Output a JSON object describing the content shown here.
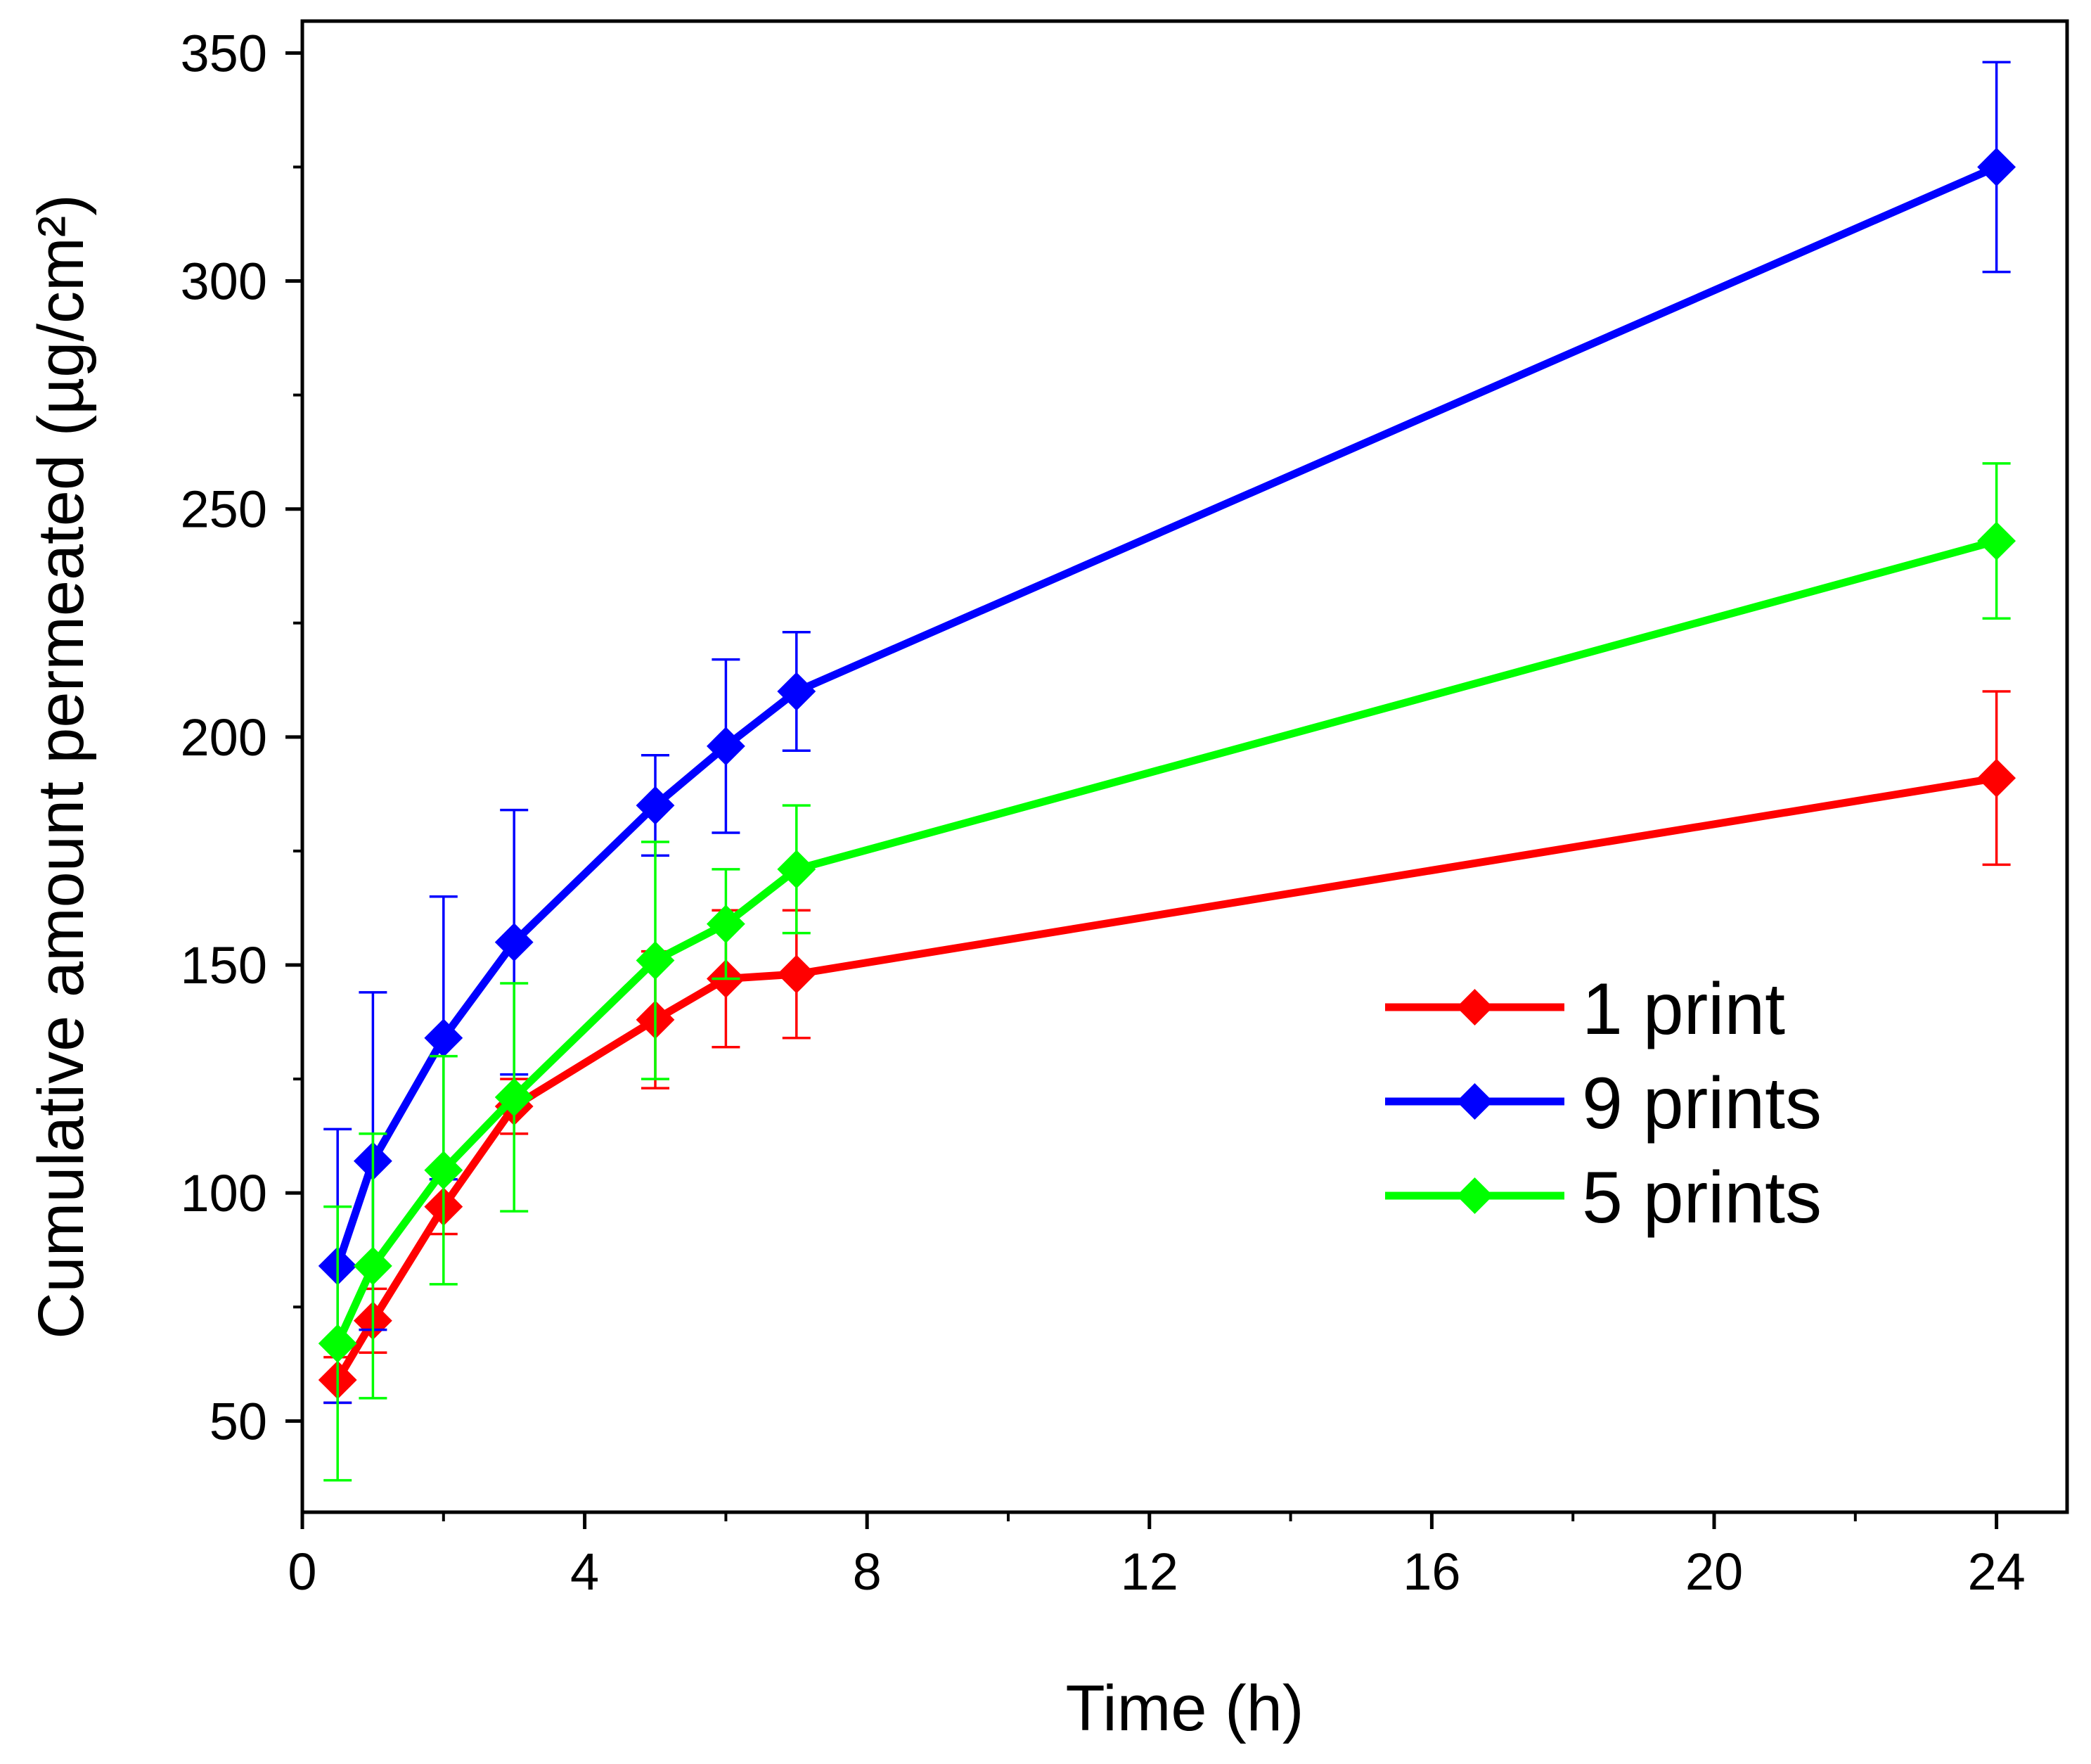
{
  "chart_data": {
    "type": "line",
    "title": "",
    "xlabel": "Time (h)",
    "ylabel": "Cumulative amount permeated (µg/cm²)",
    "xlim": [
      0,
      25
    ],
    "ylim": [
      30,
      357
    ],
    "x_ticks": [
      0,
      4,
      8,
      12,
      16,
      20,
      24
    ],
    "x_minor_ticks": [
      2,
      6,
      10,
      14,
      18,
      22
    ],
    "y_ticks": [
      50,
      100,
      150,
      200,
      250,
      300,
      350
    ],
    "grid": false,
    "legend_position": "center-right",
    "x": [
      0.5,
      1,
      2,
      3,
      5,
      6,
      7,
      24
    ],
    "series": [
      {
        "name": "1 print",
        "color": "#ff0000",
        "values": [
          59,
          72,
          97,
          119,
          138,
          147,
          148,
          191
        ],
        "errors": [
          5,
          7,
          6,
          6,
          15,
          15,
          14,
          19
        ]
      },
      {
        "name": "9 prints",
        "color": "#0000ff",
        "values": [
          84,
          107,
          134,
          155,
          185,
          198,
          210,
          325
        ],
        "errors": [
          30,
          37,
          31,
          29,
          11,
          19,
          13,
          23
        ]
      },
      {
        "name": "5 prints",
        "color": "#00ff00",
        "values": [
          67,
          84,
          105,
          121,
          151,
          159,
          171,
          243
        ],
        "errors": [
          30,
          29,
          25,
          25,
          26,
          12,
          14,
          17
        ]
      }
    ]
  }
}
